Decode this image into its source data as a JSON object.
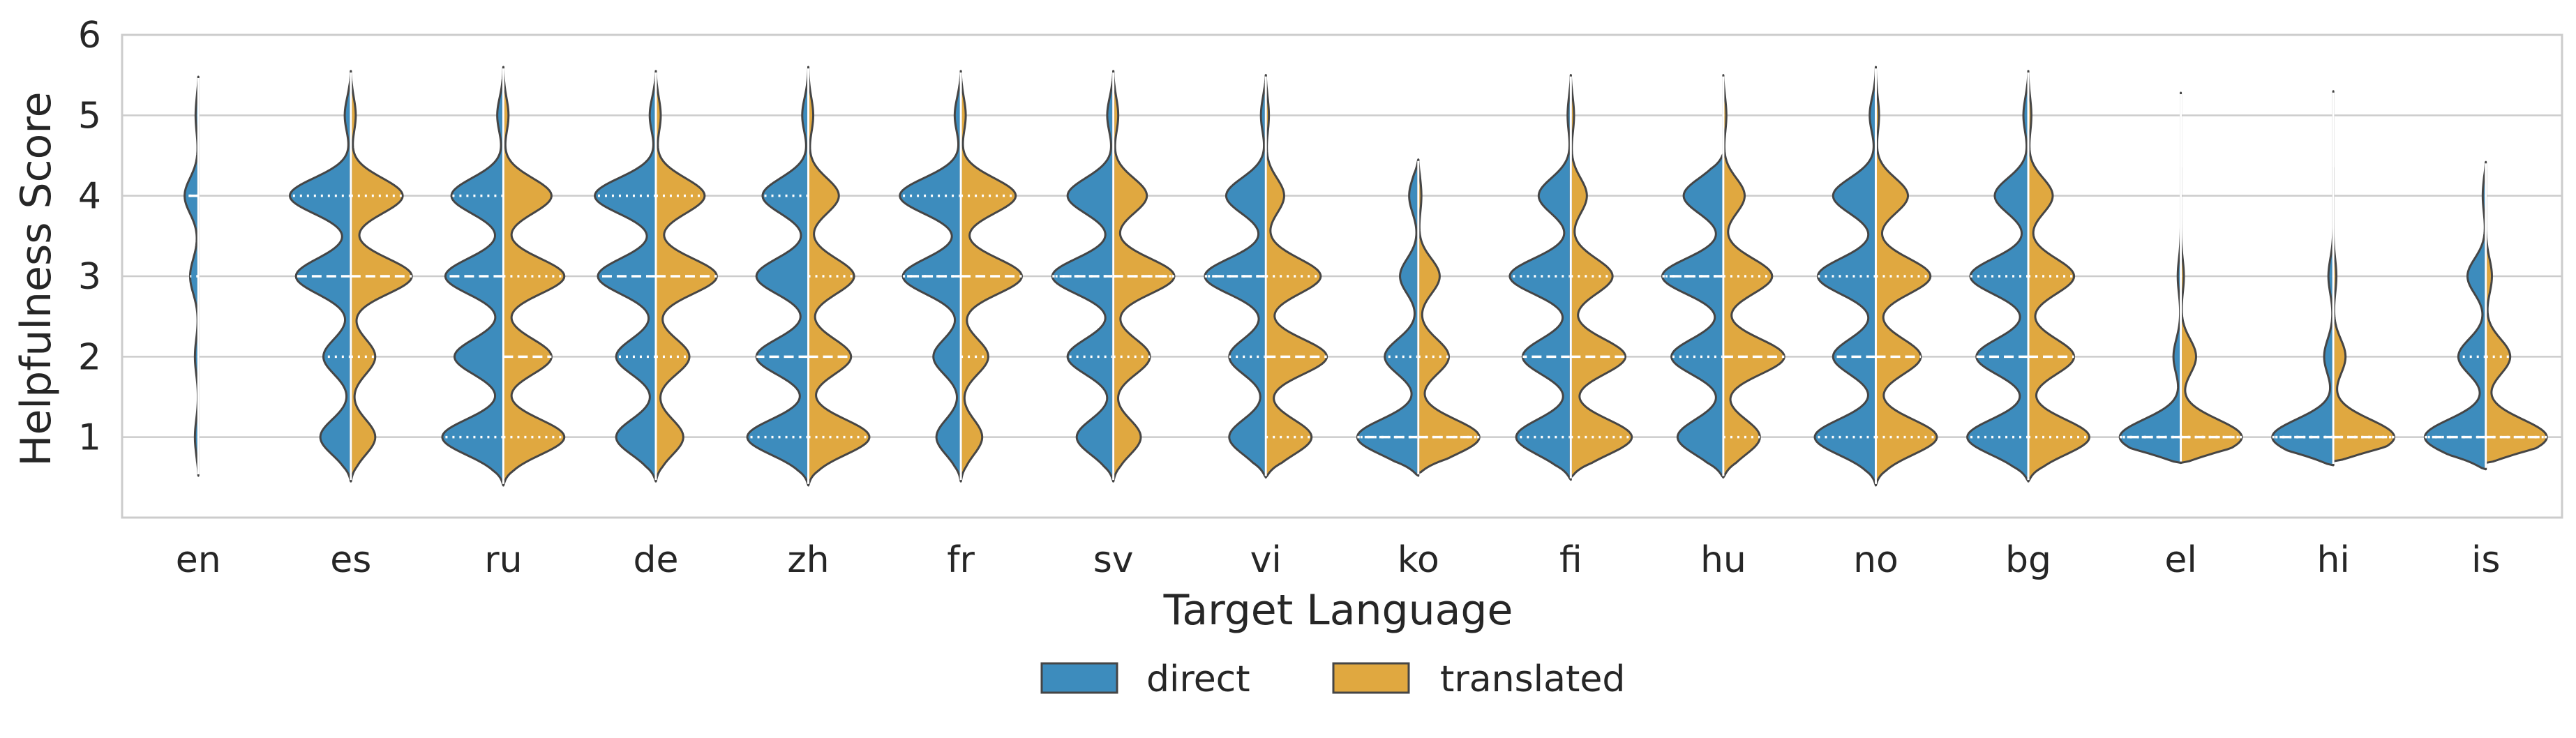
{
  "chart_data": {
    "type": "violin",
    "xlabel": "Target Language",
    "ylabel": "Helpfulness Score",
    "ylim": [
      0.0,
      6.0
    ],
    "yticks": [
      1,
      2,
      3,
      4,
      5,
      6
    ],
    "grid": "horizontal",
    "legend": {
      "position": "bottom-center"
    },
    "categories": [
      "en",
      "es",
      "ru",
      "de",
      "zh",
      "fr",
      "sv",
      "vi",
      "ko",
      "fi",
      "hu",
      "no",
      "bg",
      "el",
      "hi",
      "is"
    ],
    "series": [
      {
        "name": "direct",
        "color": "#3d8cbd",
        "violins": [
          {
            "range": [
              0.52,
              5.48
            ],
            "width": 0.09,
            "peaks": [
              [
                1.0,
                0.25
              ],
              [
                2.0,
                0.25
              ],
              [
                3.0,
                0.6
              ],
              [
                4.0,
                1.0
              ],
              [
                5.0,
                0.2
              ]
            ],
            "q1": 3,
            "median": 4,
            "q3": 4
          },
          {
            "range": [
              0.45,
              5.55
            ],
            "width": 0.4,
            "peaks": [
              [
                1.0,
                0.5
              ],
              [
                2.0,
                0.45
              ],
              [
                3.0,
                0.9
              ],
              [
                4.0,
                1.0
              ],
              [
                5.0,
                0.1
              ]
            ],
            "q1": 2,
            "median": 3,
            "q3": 4
          },
          {
            "range": [
              0.4,
              5.6
            ],
            "width": 0.4,
            "peaks": [
              [
                1.0,
                1.0
              ],
              [
                2.0,
                0.8
              ],
              [
                3.0,
                0.95
              ],
              [
                4.0,
                0.85
              ],
              [
                5.0,
                0.1
              ]
            ],
            "q1": 1,
            "median": 3,
            "q3": 4
          },
          {
            "range": [
              0.45,
              5.55
            ],
            "width": 0.4,
            "peaks": [
              [
                1.0,
                0.65
              ],
              [
                2.0,
                0.65
              ],
              [
                3.0,
                0.95
              ],
              [
                4.0,
                1.0
              ],
              [
                5.0,
                0.1
              ]
            ],
            "q1": 2,
            "median": 3,
            "q3": 4
          },
          {
            "range": [
              0.4,
              5.6
            ],
            "width": 0.4,
            "peaks": [
              [
                1.0,
                1.0
              ],
              [
                2.0,
                0.85
              ],
              [
                3.0,
                0.85
              ],
              [
                4.0,
                0.75
              ],
              [
                5.0,
                0.1
              ]
            ],
            "q1": 1,
            "median": 2,
            "q3": 4
          },
          {
            "range": [
              0.45,
              5.55
            ],
            "width": 0.4,
            "peaks": [
              [
                1.0,
                0.4
              ],
              [
                2.0,
                0.45
              ],
              [
                3.0,
                0.95
              ],
              [
                4.0,
                1.0
              ],
              [
                5.0,
                0.1
              ]
            ],
            "q1": 3,
            "median": 3,
            "q3": 4
          },
          {
            "range": [
              0.45,
              5.55
            ],
            "width": 0.4,
            "peaks": [
              [
                1.0,
                0.6
              ],
              [
                2.0,
                0.75
              ],
              [
                3.0,
                1.0
              ],
              [
                4.0,
                0.75
              ],
              [
                5.0,
                0.1
              ]
            ],
            "q1": 2,
            "median": 3,
            "q3": 3
          },
          {
            "range": [
              0.5,
              5.5
            ],
            "width": 0.4,
            "peaks": [
              [
                1.0,
                0.6
              ],
              [
                2.0,
                0.6
              ],
              [
                3.0,
                1.0
              ],
              [
                4.0,
                0.65
              ],
              [
                5.0,
                0.08
              ]
            ],
            "q1": 2,
            "median": 3,
            "q3": 3
          },
          {
            "range": [
              0.52,
              4.45
            ],
            "width": 0.4,
            "peaks": [
              [
                1.0,
                1.0
              ],
              [
                2.0,
                0.55
              ],
              [
                3.0,
                0.3
              ],
              [
                4.0,
                0.15
              ]
            ],
            "q1": 1,
            "median": 1,
            "q3": 2
          },
          {
            "range": [
              0.47,
              5.5
            ],
            "width": 0.4,
            "peaks": [
              [
                1.0,
                0.85
              ],
              [
                2.0,
                0.75
              ],
              [
                3.0,
                0.95
              ],
              [
                4.0,
                0.5
              ],
              [
                5.0,
                0.05
              ]
            ],
            "q1": 1,
            "median": 2,
            "q3": 3
          },
          {
            "range": [
              0.5,
              4.52
            ],
            "width": 0.4,
            "peaks": [
              [
                1.0,
                0.75
              ],
              [
                2.0,
                0.85
              ],
              [
                3.0,
                1.0
              ],
              [
                4.0,
                0.65
              ]
            ],
            "q1": 2,
            "median": 3,
            "q3": 3
          },
          {
            "range": [
              0.4,
              5.6
            ],
            "width": 0.4,
            "peaks": [
              [
                1.0,
                1.0
              ],
              [
                2.0,
                0.7
              ],
              [
                3.0,
                0.95
              ],
              [
                4.0,
                0.7
              ],
              [
                5.0,
                0.1
              ]
            ],
            "q1": 1,
            "median": 2,
            "q3": 3
          },
          {
            "range": [
              0.45,
              5.55
            ],
            "width": 0.4,
            "peaks": [
              [
                1.0,
                1.0
              ],
              [
                2.0,
                0.85
              ],
              [
                3.0,
                0.95
              ],
              [
                4.0,
                0.55
              ],
              [
                5.0,
                0.08
              ]
            ],
            "q1": 1,
            "median": 2,
            "q3": 3
          },
          {
            "range": [
              0.68,
              4.35
            ],
            "width": 0.4,
            "peaks": [
              [
                1.0,
                1.0
              ],
              [
                2.0,
                0.12
              ],
              [
                3.0,
                0.05
              ]
            ],
            "q1": 1,
            "median": 1,
            "q3": 1
          },
          {
            "range": [
              0.65,
              4.35
            ],
            "width": 0.4,
            "peaks": [
              [
                1.0,
                1.0
              ],
              [
                2.0,
                0.15
              ],
              [
                3.0,
                0.08
              ]
            ],
            "q1": 1,
            "median": 1,
            "q3": 1
          },
          {
            "range": [
              0.6,
              4.42
            ],
            "width": 0.4,
            "peaks": [
              [
                1.0,
                1.0
              ],
              [
                2.0,
                0.45
              ],
              [
                3.0,
                0.3
              ],
              [
                4.0,
                0.05
              ]
            ],
            "q1": 1,
            "median": 1,
            "q3": 2
          }
        ]
      },
      {
        "name": "translated",
        "color": "#e0a840",
        "violins": [
          null,
          {
            "range": [
              0.45,
              5.55
            ],
            "width": 0.4,
            "peaks": [
              [
                1.0,
                0.4
              ],
              [
                2.0,
                0.4
              ],
              [
                3.0,
                1.0
              ],
              [
                4.0,
                0.85
              ],
              [
                5.0,
                0.08
              ]
            ],
            "q1": 2,
            "median": 3,
            "q3": 4
          },
          {
            "range": [
              0.4,
              5.6
            ],
            "width": 0.4,
            "peaks": [
              [
                1.0,
                0.95
              ],
              [
                2.0,
                0.75
              ],
              [
                3.0,
                0.95
              ],
              [
                4.0,
                0.75
              ],
              [
                5.0,
                0.08
              ]
            ],
            "q1": 1,
            "median": 2,
            "q3": 3
          },
          {
            "range": [
              0.45,
              5.55
            ],
            "width": 0.4,
            "peaks": [
              [
                1.0,
                0.45
              ],
              [
                2.0,
                0.55
              ],
              [
                3.0,
                1.0
              ],
              [
                4.0,
                0.8
              ],
              [
                5.0,
                0.08
              ]
            ],
            "q1": 2,
            "median": 3,
            "q3": 4
          },
          {
            "range": [
              0.4,
              5.6
            ],
            "width": 0.4,
            "peaks": [
              [
                1.0,
                1.0
              ],
              [
                2.0,
                0.7
              ],
              [
                3.0,
                0.75
              ],
              [
                4.0,
                0.5
              ],
              [
                5.0,
                0.08
              ]
            ],
            "q1": 1,
            "median": 2,
            "q3": 3
          },
          {
            "range": [
              0.45,
              5.55
            ],
            "width": 0.4,
            "peaks": [
              [
                1.0,
                0.35
              ],
              [
                2.0,
                0.45
              ],
              [
                3.0,
                1.0
              ],
              [
                4.0,
                0.9
              ],
              [
                5.0,
                0.08
              ]
            ],
            "q1": 2,
            "median": 3,
            "q3": 4
          },
          {
            "range": [
              0.45,
              5.55
            ],
            "width": 0.4,
            "peaks": [
              [
                1.0,
                0.45
              ],
              [
                2.0,
                0.6
              ],
              [
                3.0,
                1.0
              ],
              [
                4.0,
                0.55
              ],
              [
                5.0,
                0.08
              ]
            ],
            "q1": 2,
            "median": 3,
            "q3": 3
          },
          {
            "range": [
              0.5,
              5.5
            ],
            "width": 0.4,
            "peaks": [
              [
                1.0,
                0.75
              ],
              [
                2.0,
                1.0
              ],
              [
                3.0,
                0.9
              ],
              [
                4.0,
                0.3
              ],
              [
                5.0,
                0.05
              ]
            ],
            "q1": 1,
            "median": 2,
            "q3": 3
          },
          {
            "range": [
              0.55,
              4.45
            ],
            "width": 0.4,
            "peaks": [
              [
                1.0,
                1.0
              ],
              [
                2.0,
                0.5
              ],
              [
                3.0,
                0.35
              ],
              [
                4.0,
                0.05
              ]
            ],
            "q1": 1,
            "median": 1,
            "q3": 2
          },
          {
            "range": [
              0.5,
              5.5
            ],
            "width": 0.4,
            "peaks": [
              [
                1.0,
                0.95
              ],
              [
                2.0,
                0.85
              ],
              [
                3.0,
                0.65
              ],
              [
                4.0,
                0.25
              ],
              [
                5.0,
                0.05
              ]
            ],
            "q1": 1,
            "median": 2,
            "q3": 3
          },
          {
            "range": [
              0.5,
              5.5
            ],
            "width": 0.4,
            "peaks": [
              [
                1.0,
                0.6
              ],
              [
                2.0,
                1.0
              ],
              [
                3.0,
                0.8
              ],
              [
                4.0,
                0.35
              ],
              [
                5.0,
                0.05
              ]
            ],
            "q1": 1,
            "median": 2,
            "q3": 3
          },
          {
            "range": [
              0.4,
              5.6
            ],
            "width": 0.4,
            "peaks": [
              [
                1.0,
                0.95
              ],
              [
                2.0,
                0.7
              ],
              [
                3.0,
                0.85
              ],
              [
                4.0,
                0.5
              ],
              [
                5.0,
                0.05
              ]
            ],
            "q1": 1,
            "median": 2,
            "q3": 3
          },
          {
            "range": [
              0.45,
              5.55
            ],
            "width": 0.4,
            "peaks": [
              [
                1.0,
                1.0
              ],
              [
                2.0,
                0.75
              ],
              [
                3.0,
                0.75
              ],
              [
                4.0,
                0.4
              ],
              [
                5.0,
                0.05
              ]
            ],
            "q1": 1,
            "median": 2,
            "q3": 3
          },
          {
            "range": [
              0.68,
              5.28
            ],
            "width": 0.4,
            "peaks": [
              [
                1.0,
                1.0
              ],
              [
                2.0,
                0.25
              ],
              [
                3.0,
                0.05
              ]
            ],
            "q1": 1,
            "median": 1,
            "q3": 1
          },
          {
            "range": [
              0.7,
              5.3
            ],
            "width": 0.4,
            "peaks": [
              [
                1.0,
                1.0
              ],
              [
                2.0,
                0.2
              ],
              [
                3.0,
                0.05
              ]
            ],
            "q1": 1,
            "median": 1,
            "q3": 1
          },
          {
            "range": [
              0.68,
              4.32
            ],
            "width": 0.4,
            "peaks": [
              [
                1.0,
                1.0
              ],
              [
                2.0,
                0.4
              ],
              [
                3.0,
                0.1
              ]
            ],
            "q1": 1,
            "median": 1,
            "q3": 2
          }
        ]
      }
    ]
  }
}
